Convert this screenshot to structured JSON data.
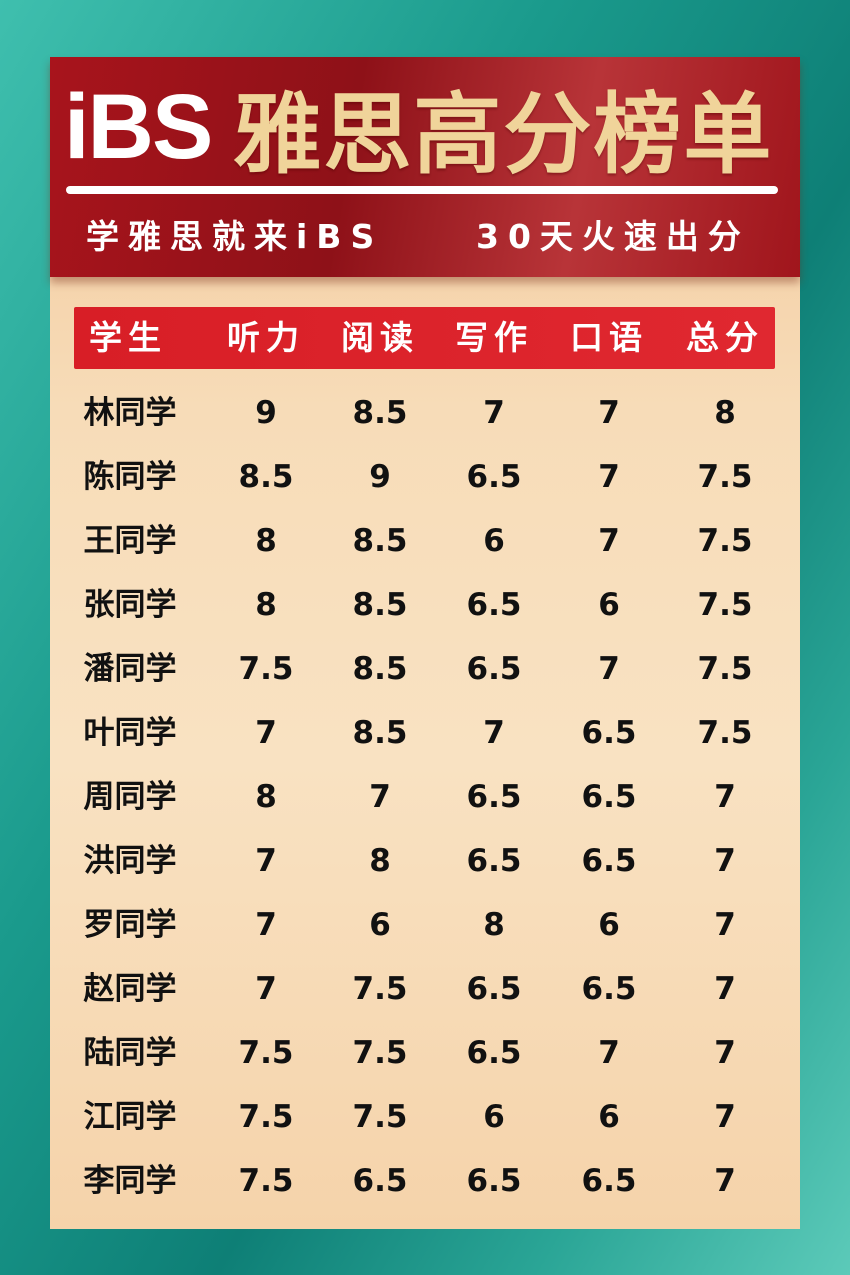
{
  "header": {
    "brand": "iBS",
    "title": "雅思高分榜单",
    "slogan_left": "学雅思就来iBS",
    "slogan_right": "30天火速出分"
  },
  "colors": {
    "banner": "#a8141c",
    "title_gold": "#f0d49a",
    "header_row": "#d81e26",
    "panel": "#f7dcb8",
    "background": "#1a9a8c"
  },
  "table": {
    "columns": [
      "学生",
      "听力",
      "阅读",
      "写作",
      "口语",
      "总分"
    ],
    "rows": [
      [
        "林同学",
        "9",
        "8.5",
        "7",
        "7",
        "8"
      ],
      [
        "陈同学",
        "8.5",
        "9",
        "6.5",
        "7",
        "7.5"
      ],
      [
        "王同学",
        "8",
        "8.5",
        "6",
        "7",
        "7.5"
      ],
      [
        "张同学",
        "8",
        "8.5",
        "6.5",
        "6",
        "7.5"
      ],
      [
        "潘同学",
        "7.5",
        "8.5",
        "6.5",
        "7",
        "7.5"
      ],
      [
        "叶同学",
        "7",
        "8.5",
        "7",
        "6.5",
        "7.5"
      ],
      [
        "周同学",
        "8",
        "7",
        "6.5",
        "6.5",
        "7"
      ],
      [
        "洪同学",
        "7",
        "8",
        "6.5",
        "6.5",
        "7"
      ],
      [
        "罗同学",
        "7",
        "6",
        "8",
        "6",
        "7"
      ],
      [
        "赵同学",
        "7",
        "7.5",
        "6.5",
        "6.5",
        "7"
      ],
      [
        "陆同学",
        "7.5",
        "7.5",
        "6.5",
        "7",
        "7"
      ],
      [
        "江同学",
        "7.5",
        "7.5",
        "6",
        "6",
        "7"
      ],
      [
        "李同学",
        "7.5",
        "6.5",
        "6.5",
        "6.5",
        "7"
      ]
    ]
  }
}
